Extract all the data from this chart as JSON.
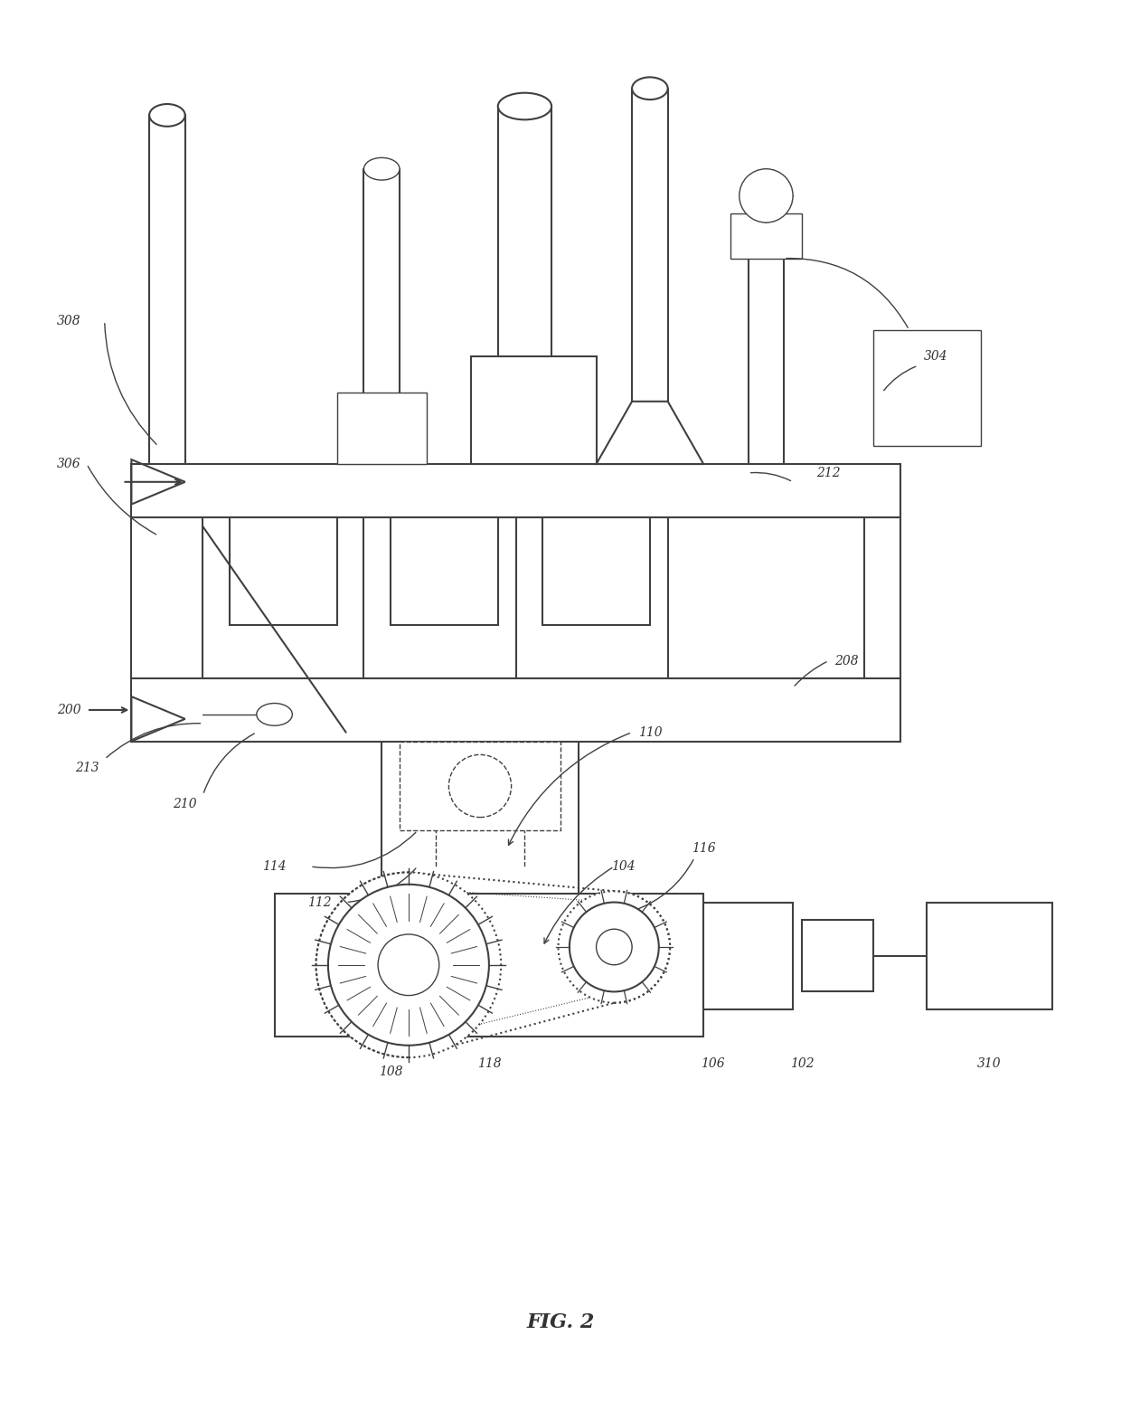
{
  "title": "FIG. 2",
  "bg_color": "#ffffff",
  "line_color": "#404040",
  "label_color": "#333333",
  "fig_width": 12.4,
  "fig_height": 15.6
}
